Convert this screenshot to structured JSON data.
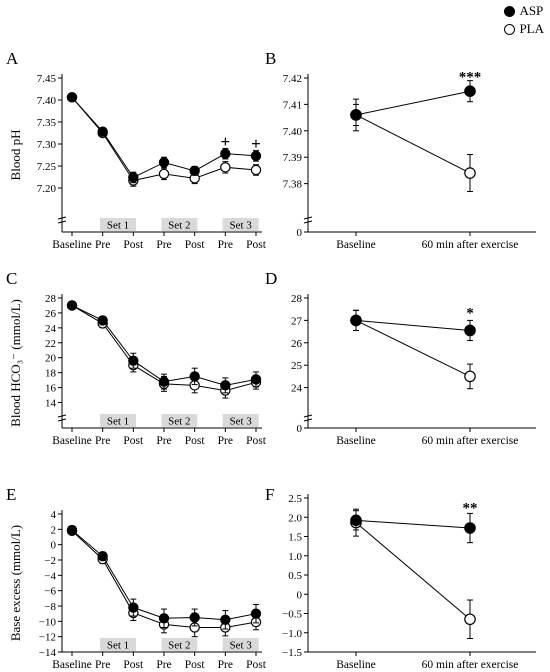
{
  "legend": [
    {
      "label": "ASP",
      "fill": "#000000"
    },
    {
      "label": "PLA",
      "fill": "#ffffff"
    }
  ],
  "chart_data": [
    {
      "panel": "A",
      "type": "line",
      "ylabel": "Blood pH",
      "ylim": [
        7.15,
        7.45
      ],
      "break_visible": 7.15,
      "yticks": [
        "7.20",
        "7.25",
        "7.30",
        "7.35",
        "7.40",
        "7.45"
      ],
      "yticks_values": [
        7.2,
        7.25,
        7.3,
        7.35,
        7.4,
        7.45
      ],
      "categories": [
        "Baseline",
        "Pre",
        "Post",
        "Pre",
        "Post",
        "Pre",
        "Post"
      ],
      "sets": [
        {
          "label": "Set 1",
          "start": 1,
          "end": 2
        },
        {
          "label": "Set 2",
          "start": 3,
          "end": 4
        },
        {
          "label": "Set 3",
          "start": 5,
          "end": 6
        }
      ],
      "series": [
        {
          "name": "ASP",
          "values": [
            7.406,
            7.328,
            7.224,
            7.258,
            7.239,
            7.278,
            7.273
          ],
          "errors": [
            0.004,
            0.006,
            0.012,
            0.012,
            0.01,
            0.012,
            0.012
          ]
        },
        {
          "name": "PLA",
          "values": [
            7.406,
            7.325,
            7.217,
            7.232,
            7.222,
            7.247,
            7.241
          ],
          "errors": [
            0.004,
            0.006,
            0.013,
            0.013,
            0.012,
            0.013,
            0.012
          ]
        }
      ],
      "annotations": [
        {
          "text": "+",
          "x": 5,
          "y": 7.304
        },
        {
          "text": "+",
          "x": 6,
          "y": 7.3
        }
      ]
    },
    {
      "panel": "B",
      "type": "line",
      "ylabel": "",
      "ylim": [
        7.37,
        7.42
      ],
      "break_visible": 7.37,
      "yticks": [
        "7.38",
        "7.39",
        "7.40",
        "7.41",
        "7.42"
      ],
      "yticks_values": [
        7.38,
        7.39,
        7.4,
        7.41,
        7.42
      ],
      "zero_label": "0",
      "categories": [
        "Baseline",
        "60 min after exercise"
      ],
      "series": [
        {
          "name": "ASP",
          "values": [
            7.406,
            7.415
          ],
          "errors": [
            0.004,
            0.004
          ]
        },
        {
          "name": "PLA",
          "values": [
            7.406,
            7.384
          ],
          "errors": [
            0.006,
            0.007
          ]
        }
      ],
      "annotations": [
        {
          "text": "***",
          "x": 1,
          "y": 7.4205
        }
      ]
    },
    {
      "panel": "C",
      "type": "line",
      "ylabel": "Blood HCO₃⁻ (mmol/L)",
      "ylim": [
        13,
        28
      ],
      "break_visible": 13,
      "yticks": [
        "14",
        "16",
        "18",
        "20",
        "22",
        "24",
        "26",
        "28"
      ],
      "yticks_values": [
        14,
        16,
        18,
        20,
        22,
        24,
        26,
        28
      ],
      "categories": [
        "Baseline",
        "Pre",
        "Post",
        "Pre",
        "Post",
        "Pre",
        "Post"
      ],
      "sets": [
        {
          "label": "Set 1",
          "start": 1,
          "end": 2
        },
        {
          "label": "Set 2",
          "start": 3,
          "end": 4
        },
        {
          "label": "Set 3",
          "start": 5,
          "end": 6
        }
      ],
      "series": [
        {
          "name": "ASP",
          "values": [
            27.0,
            25.0,
            19.6,
            16.8,
            17.5,
            16.3,
            17.1
          ],
          "errors": [
            0.4,
            0.5,
            1.0,
            1.0,
            1.1,
            1.0,
            1.0
          ]
        },
        {
          "name": "PLA",
          "values": [
            27.0,
            24.6,
            19.0,
            16.5,
            16.3,
            15.6,
            16.7
          ],
          "errors": [
            0.4,
            0.5,
            0.9,
            1.0,
            1.0,
            1.0,
            0.9
          ]
        }
      ],
      "annotations": []
    },
    {
      "panel": "D",
      "type": "line",
      "ylabel": "",
      "ylim": [
        23,
        28
      ],
      "break_visible": 23,
      "yticks": [
        "24",
        "25",
        "26",
        "27",
        "28"
      ],
      "yticks_values": [
        24,
        25,
        26,
        27,
        28
      ],
      "zero_label": "0",
      "categories": [
        "Baseline",
        "60 min after exercise"
      ],
      "series": [
        {
          "name": "ASP",
          "values": [
            27.0,
            26.55
          ],
          "errors": [
            0.45,
            0.45
          ]
        },
        {
          "name": "PLA",
          "values": [
            27.0,
            24.5
          ],
          "errors": [
            0.45,
            0.55
          ]
        }
      ],
      "annotations": [
        {
          "text": "*",
          "x": 1,
          "y": 27.35
        }
      ]
    },
    {
      "panel": "E",
      "type": "line",
      "ylabel": "Base excess (mmol/L)",
      "ylim": [
        -14,
        4
      ],
      "break_visible": null,
      "yticks": [
        "−14",
        "−12",
        "−10",
        "−8",
        "−6",
        "−4",
        "−2",
        "0",
        "2",
        "4"
      ],
      "yticks_values": [
        -14,
        -12,
        -10,
        -8,
        -6,
        -4,
        -2,
        0,
        2,
        4
      ],
      "categories": [
        "Baseline",
        "Pre",
        "Post",
        "Pre",
        "Post",
        "Pre",
        "Post"
      ],
      "sets": [
        {
          "label": "Set 1",
          "start": 1,
          "end": 2
        },
        {
          "label": "Set 2",
          "start": 3,
          "end": 4
        },
        {
          "label": "Set 3",
          "start": 5,
          "end": 6
        }
      ],
      "series": [
        {
          "name": "ASP",
          "values": [
            1.9,
            -1.5,
            -8.2,
            -9.6,
            -9.5,
            -9.8,
            -9.0
          ],
          "errors": [
            0.4,
            0.5,
            1.1,
            1.2,
            1.1,
            1.2,
            1.2
          ]
        },
        {
          "name": "PLA",
          "values": [
            1.8,
            -1.9,
            -8.9,
            -10.4,
            -10.8,
            -10.8,
            -10.1
          ],
          "errors": [
            0.4,
            0.5,
            1.0,
            1.1,
            1.2,
            1.1,
            1.0
          ]
        }
      ],
      "annotations": []
    },
    {
      "panel": "F",
      "type": "line",
      "ylabel": "",
      "ylim": [
        -1.5,
        2.5
      ],
      "break_visible": null,
      "yticks": [
        "−1.5",
        "−1.0",
        "−0.5",
        "0",
        "0.5",
        "1.0",
        "1.5",
        "2.0",
        "2.5"
      ],
      "yticks_values": [
        -1.5,
        -1.0,
        -0.5,
        0,
        0.5,
        1.0,
        1.5,
        2.0,
        2.5
      ],
      "categories": [
        "Baseline",
        "60 min after exercise"
      ],
      "series": [
        {
          "name": "ASP",
          "values": [
            1.92,
            1.72
          ],
          "errors": [
            0.25,
            0.38
          ]
        },
        {
          "name": "PLA",
          "values": [
            1.86,
            -0.65
          ],
          "errors": [
            0.35,
            0.5
          ]
        }
      ],
      "annotations": [
        {
          "text": "**",
          "x": 1,
          "y": 2.25
        }
      ]
    }
  ]
}
